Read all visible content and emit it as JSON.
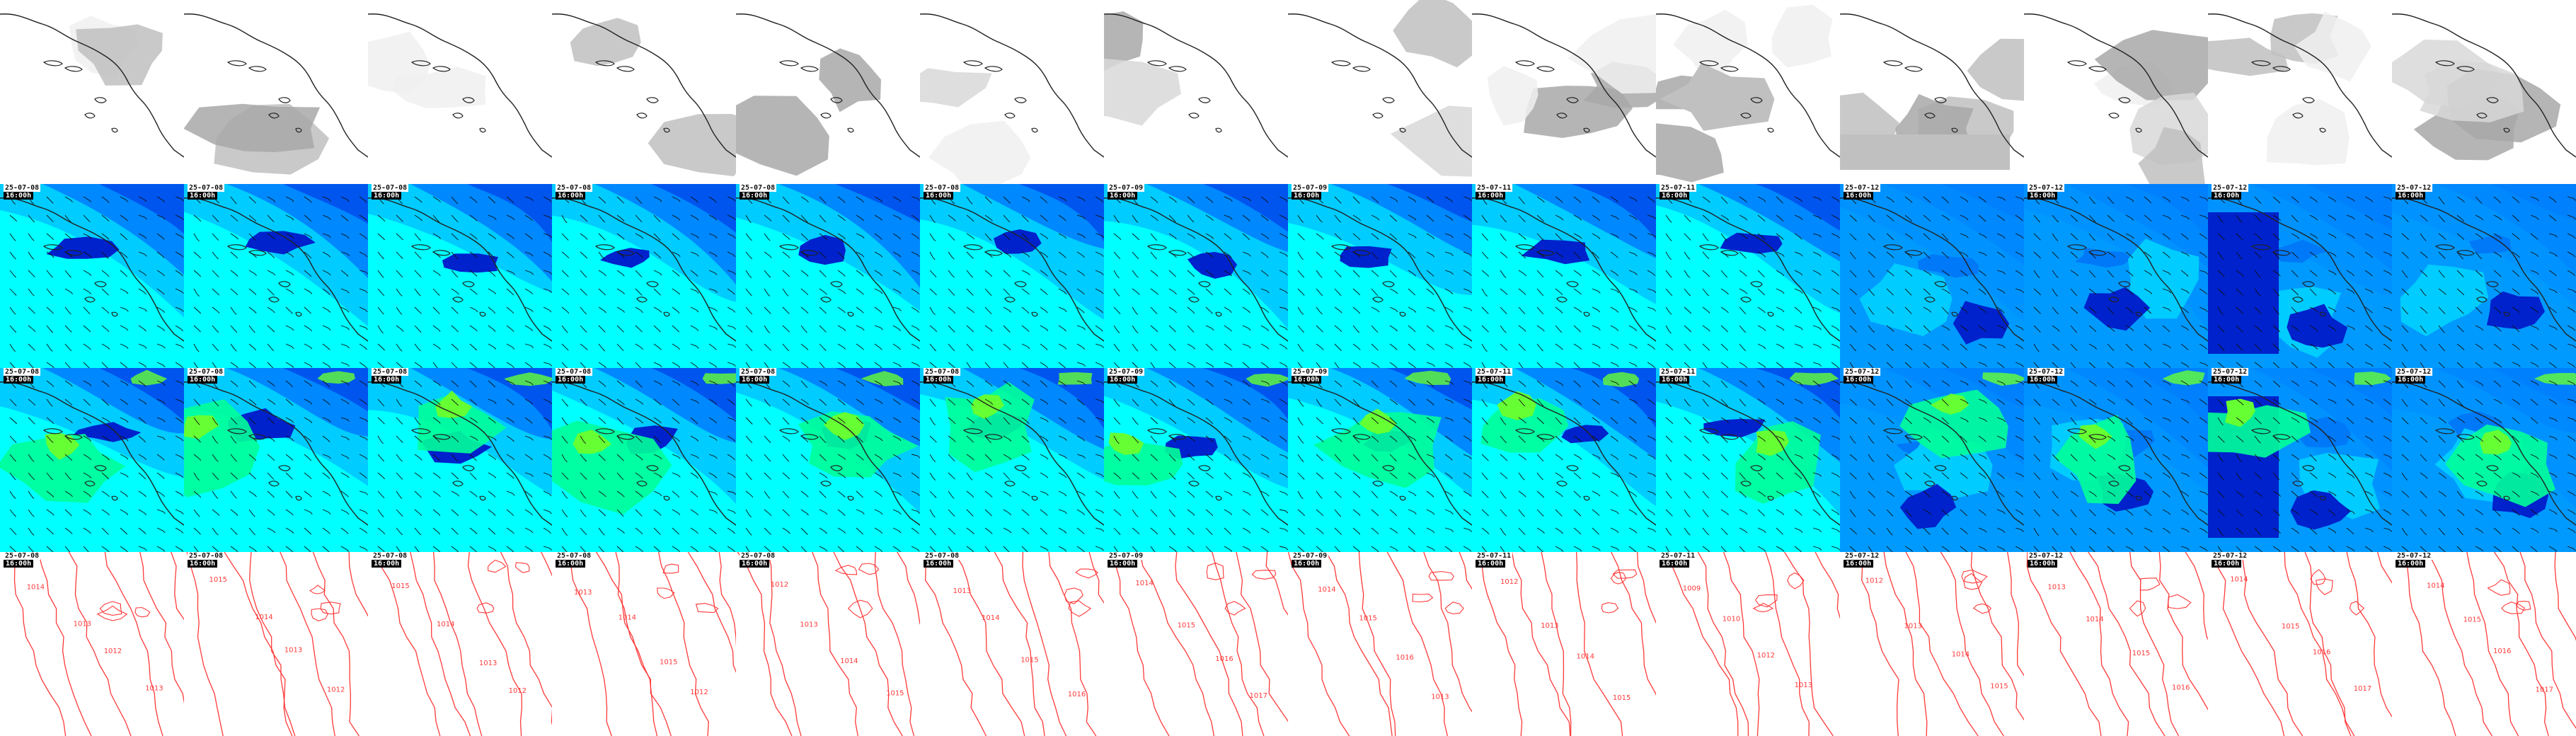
{
  "layout": {
    "columns": 14,
    "rows": 4
  },
  "row_types": [
    "precip-cloud",
    "wind-speed-850",
    "wind-speed-surface",
    "pressure-isobars"
  ],
  "time_labels": [
    {
      "date": "25-07-08",
      "time": "16:00h"
    },
    {
      "date": "25-07-08",
      "time": "16:00h"
    },
    {
      "date": "25-07-08",
      "time": "16:00h"
    },
    {
      "date": "25-07-08",
      "time": "16:00h"
    },
    {
      "date": "25-07-08",
      "time": "16:00h"
    },
    {
      "date": "25-07-08",
      "time": "16:00h"
    },
    {
      "date": "25-07-09",
      "time": "16:00h"
    },
    {
      "date": "25-07-09",
      "time": "16:00h"
    },
    {
      "date": "25-07-11",
      "time": "16:00h"
    },
    {
      "date": "25-07-11",
      "time": "16:00h"
    },
    {
      "date": "25-07-12",
      "time": "16:00h"
    },
    {
      "date": "25-07-12",
      "time": "16:00h"
    },
    {
      "date": "25-07-12",
      "time": "16:00h"
    },
    {
      "date": "25-07-12",
      "time": "16:00h"
    }
  ],
  "isobar_labels": [
    [
      "1014",
      "1013",
      "1012",
      "1013"
    ],
    [
      "1015",
      "1014",
      "1013",
      "1012"
    ],
    [
      "1015",
      "1014",
      "1013",
      "1012"
    ],
    [
      "1013",
      "1014",
      "1015",
      "1012"
    ],
    [
      "1012",
      "1013",
      "1014",
      "1015"
    ],
    [
      "1013",
      "1014",
      "1015",
      "1016"
    ],
    [
      "1014",
      "1015",
      "1016",
      "1017"
    ],
    [
      "1014",
      "1015",
      "1016",
      "1013"
    ],
    [
      "1012",
      "1013",
      "1014",
      "1015"
    ],
    [
      "1009",
      "1010",
      "1012",
      "1013"
    ],
    [
      "1012",
      "1013",
      "1014",
      "1015"
    ],
    [
      "1013",
      "1014",
      "1015",
      "1016"
    ],
    [
      "1014",
      "1015",
      "1016",
      "1017"
    ],
    [
      "1014",
      "1015",
      "1016",
      "1017"
    ]
  ],
  "colors": {
    "map_background": "#ffffff",
    "coastline": "#222222",
    "isobar": "#ff3a3a",
    "wind_levels": [
      "#00ffff",
      "#00ccff",
      "#0088ff",
      "#0055ee",
      "#0022cc",
      "#00ff99",
      "#66ff33"
    ],
    "cloud_levels": [
      "#f0f0f0",
      "#d8d8d8",
      "#c0c0c0",
      "#a8a8a8"
    ],
    "label_bg": "#000000",
    "label_fg": "#ffffff"
  }
}
